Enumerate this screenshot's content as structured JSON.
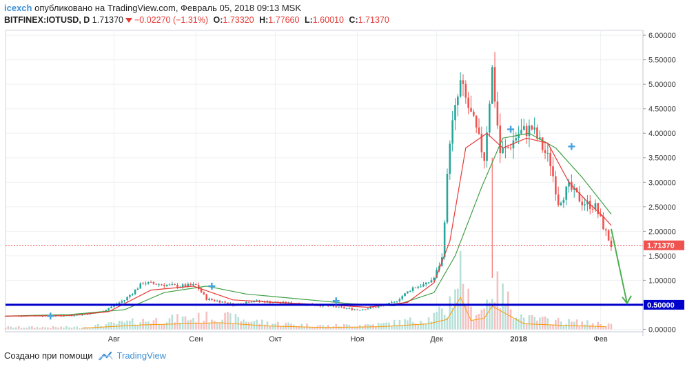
{
  "header": {
    "author": "icexch",
    "published_text": "опубликовано на TradingView.com, Февраль 05, 2018 09:13 MSK",
    "symbol": "BITFINEX:IOTUSD, D",
    "last_price": "1.71370",
    "change": "−0.02270 (−1.31%)",
    "o_label": "O:",
    "o_value": "1.73320",
    "h_label": "H:",
    "h_value": "1.77660",
    "l_label": "L:",
    "l_value": "1.60010",
    "c_label": "C:",
    "c_value": "1.71370"
  },
  "footer": {
    "created_with": "Создано при помощи",
    "brand": "TradingView"
  },
  "colors": {
    "up": "#26a69a",
    "down": "#ef5350",
    "ma_fast": "#e53935",
    "ma_slow": "#43a047",
    "hline": "#0000cc",
    "volume_ma": "#ff9800",
    "accent": "#3d8fd6"
  },
  "chart_data": {
    "type": "candlestick",
    "x_tick_labels": [
      "Авг",
      "Сен",
      "Окт",
      "Ноя",
      "Дек",
      "2018",
      "Фев"
    ],
    "x_tick_dates": [
      "2017-08-01",
      "2017-09-01",
      "2017-10-01",
      "2017-11-01",
      "2017-12-01",
      "2018-01-01",
      "2018-02-01"
    ],
    "y_tick_labels": [
      "0.00000",
      "0.50000",
      "1.00000",
      "1.50000",
      "2.00000",
      "2.50000",
      "3.00000",
      "3.50000",
      "4.00000",
      "4.50000",
      "5.00000",
      "5.50000",
      "6.00000"
    ],
    "ylim": [
      -0.05,
      6.1
    ],
    "xlim": [
      "2017-06-21",
      "2018-02-17"
    ],
    "last_price_label": "1.71370",
    "horizontal_line": {
      "value": 0.5,
      "label": "0.50000"
    },
    "series": [
      {
        "name": "",
        "kind": "price_path",
        "x": [
          "2017-06-21",
          "2017-07-01",
          "2017-07-10",
          "2017-07-20",
          "2017-07-27",
          "2017-08-05",
          "2017-08-12",
          "2017-08-18",
          "2017-08-25",
          "2017-09-01",
          "2017-09-05",
          "2017-09-12",
          "2017-09-15",
          "2017-09-22",
          "2017-10-01",
          "2017-10-10",
          "2017-10-20",
          "2017-11-01",
          "2017-11-08",
          "2017-11-15",
          "2017-11-22",
          "2017-11-27",
          "2017-11-30",
          "2017-12-03",
          "2017-12-06",
          "2017-12-10",
          "2017-12-15",
          "2017-12-19",
          "2017-12-22",
          "2017-12-25",
          "2017-12-28",
          "2018-01-01",
          "2018-01-06",
          "2018-01-10",
          "2018-01-13",
          "2018-01-16",
          "2018-01-20",
          "2018-01-25",
          "2018-01-30",
          "2018-02-02",
          "2018-02-05"
        ],
        "values": [
          0.27,
          0.28,
          0.27,
          0.3,
          0.35,
          0.6,
          0.95,
          0.92,
          0.88,
          0.9,
          0.62,
          0.55,
          0.5,
          0.58,
          0.55,
          0.52,
          0.48,
          0.4,
          0.45,
          0.55,
          0.85,
          0.92,
          1.05,
          1.45,
          3.9,
          5.0,
          4.2,
          3.5,
          5.3,
          3.6,
          3.7,
          4.0,
          4.1,
          3.7,
          3.4,
          2.6,
          2.9,
          2.6,
          2.5,
          2.1,
          1.71
        ]
      },
      {
        "name": "",
        "kind": "ma_fast",
        "x": [
          "2017-06-21",
          "2017-07-15",
          "2017-07-30",
          "2017-08-15",
          "2017-08-31",
          "2017-09-15",
          "2017-10-01",
          "2017-10-20",
          "2017-11-05",
          "2017-11-20",
          "2017-11-30",
          "2017-12-06",
          "2017-12-12",
          "2017-12-20",
          "2017-12-26",
          "2018-01-04",
          "2018-01-12",
          "2018-01-20",
          "2018-01-27",
          "2018-02-02",
          "2018-02-05"
        ],
        "values": [
          0.27,
          0.28,
          0.36,
          0.8,
          0.88,
          0.6,
          0.55,
          0.5,
          0.45,
          0.55,
          0.95,
          1.8,
          3.7,
          4.0,
          3.7,
          3.9,
          3.8,
          3.0,
          2.6,
          2.3,
          2.12
        ]
      },
      {
        "name": "",
        "kind": "ma_slow",
        "x": [
          "2017-06-21",
          "2017-07-15",
          "2017-08-05",
          "2017-08-20",
          "2017-09-05",
          "2017-09-20",
          "2017-10-10",
          "2017-10-30",
          "2017-11-15",
          "2017-11-30",
          "2017-12-08",
          "2017-12-18",
          "2017-12-26",
          "2018-01-05",
          "2018-01-15",
          "2018-01-25",
          "2018-02-05"
        ],
        "values": [
          0.27,
          0.3,
          0.4,
          0.75,
          0.88,
          0.72,
          0.62,
          0.52,
          0.48,
          0.75,
          1.5,
          2.9,
          3.9,
          4.0,
          3.7,
          3.1,
          2.35
        ]
      },
      {
        "name": "",
        "kind": "volume",
        "x": [
          "2017-07-20",
          "2017-08-12",
          "2017-09-10",
          "2017-09-28",
          "2017-10-20",
          "2017-11-10",
          "2017-11-28",
          "2017-12-05",
          "2017-12-10",
          "2017-12-14",
          "2017-12-19",
          "2017-12-22",
          "2018-01-03",
          "2018-01-18",
          "2018-02-03"
        ],
        "values": [
          0.05,
          0.2,
          0.3,
          0.15,
          0.08,
          0.12,
          0.25,
          0.45,
          1.45,
          0.4,
          0.5,
          1.05,
          0.25,
          0.18,
          0.12
        ]
      }
    ]
  }
}
